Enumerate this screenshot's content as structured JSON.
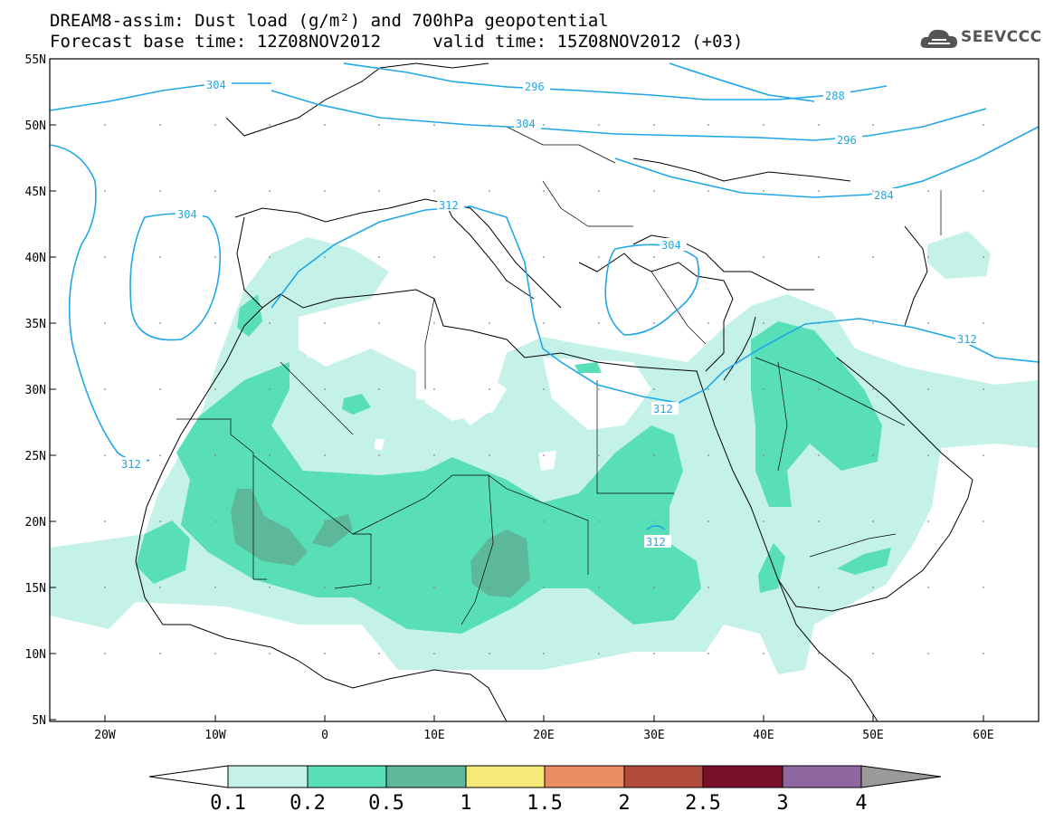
{
  "title_line1": "DREAM8-assim: Dust load (g/m²) and 700hPa geopotential",
  "title_line2": "Forecast base time: 12Z08NOV2012     valid time: 15Z08NOV2012 (+03)",
  "logo": {
    "text": "SEEVCCC",
    "icon": "cloud-icon"
  },
  "map": {
    "lat_labels": [
      "55N",
      "50N",
      "45N",
      "40N",
      "35N",
      "30N",
      "25N",
      "20N",
      "15N",
      "10N",
      "5N"
    ],
    "lon_labels": [
      "20W",
      "10W",
      "0",
      "10E",
      "20E",
      "30E",
      "40E",
      "50E",
      "60E"
    ]
  },
  "contour_labels": [
    "296",
    "288",
    "304",
    "296",
    "304",
    "304",
    "284",
    "312",
    "304",
    "312",
    "312",
    "312",
    "312"
  ],
  "colorbar": {
    "labels": [
      "0.1",
      "0.2",
      "0.5",
      "1",
      "1.5",
      "2",
      "2.5",
      "3",
      "4"
    ],
    "colors": [
      "#c4f2e9",
      "#58dfb7",
      "#5cb898",
      "#f5e97a",
      "#ec8c62",
      "#b24c3c",
      "#7a0f2a",
      "#8e66a0"
    ],
    "extend_low_color": "#ffffff",
    "extend_high_color": "#9a9a9a"
  },
  "colors": {
    "contour": "#1fa7e8",
    "dust_level1": "#c4f2e9",
    "dust_level2": "#58dfb7",
    "dust_level3": "#5cb898"
  }
}
